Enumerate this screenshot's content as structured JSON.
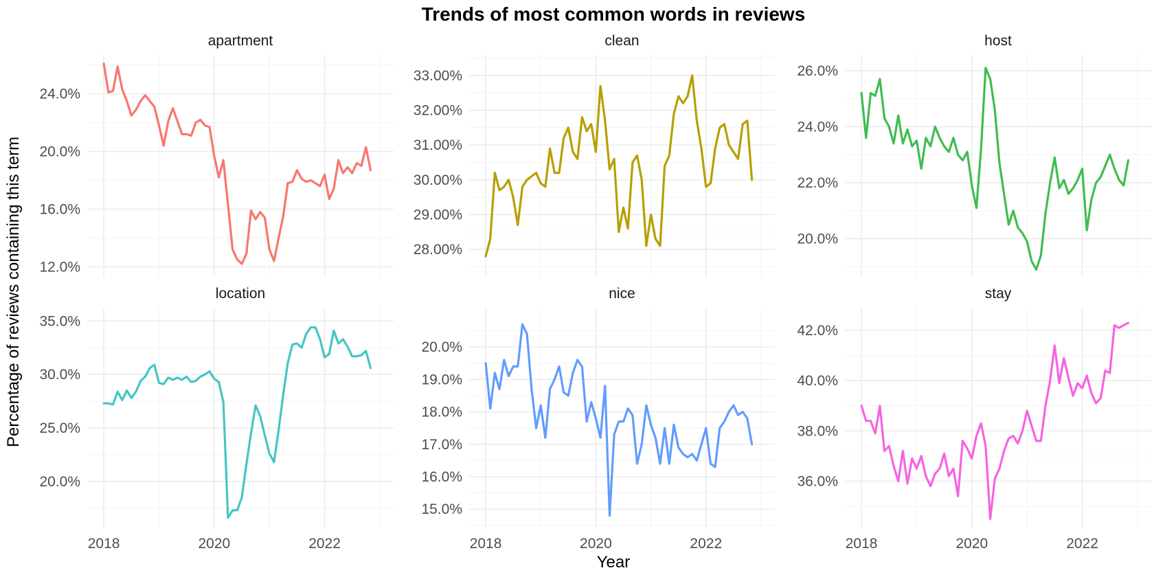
{
  "chart_data": {
    "type": "line",
    "title": "Trends of most common words in reviews",
    "xlabel": "Year",
    "ylabel": "Percentage of reviews containing this term",
    "x_ticks": [
      "2018",
      "2020",
      "2022"
    ],
    "x_range": [
      2018.0,
      2022.917
    ],
    "x_step_months": 1,
    "x_start": "2018-01",
    "grid": true,
    "panels": [
      {
        "name": "apartment",
        "color": "#F8766D",
        "ylim": [
          12.0,
          26.0
        ],
        "y_ticks": [
          "12.0%",
          "16.0%",
          "20.0%",
          "24.0%"
        ],
        "y_tick_values": [
          12,
          16,
          20,
          24
        ],
        "values": [
          26.1,
          24.1,
          24.2,
          25.9,
          24.3,
          23.5,
          22.5,
          22.9,
          23.5,
          23.9,
          23.5,
          23.1,
          21.8,
          20.4,
          22.1,
          23.0,
          22.1,
          21.2,
          21.2,
          21.1,
          22.0,
          22.2,
          21.8,
          21.7,
          19.7,
          18.2,
          19.4,
          16.3,
          13.2,
          12.5,
          12.2,
          12.9,
          15.9,
          15.3,
          15.8,
          15.4,
          13.2,
          12.4,
          14.0,
          15.5,
          17.8,
          17.9,
          18.7,
          18.1,
          17.9,
          18.0,
          17.8,
          17.6,
          18.4,
          16.7,
          17.4,
          19.4,
          18.5,
          18.9,
          18.5,
          19.2,
          19.0,
          20.3,
          18.7
        ]
      },
      {
        "name": "clean",
        "color": "#B79F00",
        "ylim": [
          27.5,
          33.3
        ],
        "y_ticks": [
          "28.00%",
          "29.00%",
          "30.00%",
          "31.00%",
          "32.00%",
          "33.00%"
        ],
        "y_tick_values": [
          28,
          29,
          30,
          31,
          32,
          33
        ],
        "values": [
          27.8,
          28.3,
          30.2,
          29.7,
          29.8,
          30.0,
          29.5,
          28.7,
          29.8,
          30.0,
          30.1,
          30.2,
          29.9,
          29.8,
          30.9,
          30.2,
          30.2,
          31.2,
          31.5,
          30.8,
          30.6,
          31.8,
          31.4,
          31.6,
          30.8,
          32.7,
          31.7,
          30.3,
          30.6,
          28.5,
          29.2,
          28.6,
          30.5,
          30.7,
          30.0,
          28.1,
          29.0,
          28.3,
          28.1,
          30.4,
          30.7,
          31.9,
          32.4,
          32.2,
          32.4,
          33.0,
          31.7,
          30.9,
          29.8,
          29.9,
          30.9,
          31.5,
          31.6,
          31.0,
          30.8,
          30.6,
          31.6,
          31.7,
          30.0
        ]
      },
      {
        "name": "host",
        "color": "#3FBD4F",
        "ylim": [
          19.0,
          26.2
        ],
        "y_ticks": [
          "20.0%",
          "22.0%",
          "24.0%",
          "26.0%"
        ],
        "y_tick_values": [
          20,
          22,
          24,
          26
        ],
        "values": [
          25.2,
          23.6,
          25.2,
          25.1,
          25.7,
          24.3,
          24.0,
          23.4,
          24.4,
          23.4,
          23.9,
          23.3,
          23.5,
          22.5,
          23.6,
          23.3,
          24.0,
          23.6,
          23.3,
          23.1,
          23.6,
          23.0,
          22.8,
          23.1,
          21.9,
          21.1,
          23.2,
          26.1,
          25.7,
          24.6,
          22.7,
          21.6,
          20.5,
          21.0,
          20.4,
          20.2,
          19.9,
          19.2,
          18.9,
          19.4,
          20.9,
          22.0,
          22.9,
          21.8,
          22.1,
          21.6,
          21.8,
          22.1,
          22.5,
          20.3,
          21.4,
          22.0,
          22.2,
          22.6,
          23.0,
          22.5,
          22.1,
          21.9,
          22.8
        ]
      },
      {
        "name": "location",
        "color": "#45C5C4",
        "ylim": [
          16.5,
          35.3
        ],
        "y_ticks": [
          "20.0%",
          "25.0%",
          "30.0%",
          "35.0%"
        ],
        "y_tick_values": [
          20,
          25,
          30,
          35
        ],
        "values": [
          27.3,
          27.3,
          27.2,
          28.4,
          27.6,
          28.5,
          27.8,
          28.4,
          29.4,
          29.8,
          30.6,
          30.9,
          29.2,
          29.1,
          29.7,
          29.5,
          29.7,
          29.5,
          29.8,
          29.3,
          29.4,
          29.8,
          30.0,
          30.3,
          29.6,
          29.3,
          27.4,
          16.6,
          17.3,
          17.3,
          18.5,
          21.6,
          24.5,
          27.1,
          26.1,
          24.3,
          22.6,
          21.8,
          24.8,
          28.1,
          31.1,
          32.8,
          32.9,
          32.5,
          33.8,
          34.4,
          34.4,
          33.3,
          31.6,
          31.9,
          34.1,
          32.9,
          33.3,
          32.6,
          31.7,
          31.7,
          31.8,
          32.2,
          30.6
        ]
      },
      {
        "name": "nice",
        "color": "#619CFF",
        "ylim": [
          14.7,
          20.9
        ],
        "y_ticks": [
          "15.0%",
          "16.0%",
          "17.0%",
          "18.0%",
          "19.0%",
          "20.0%"
        ],
        "y_tick_values": [
          15,
          16,
          17,
          18,
          19,
          20
        ],
        "values": [
          19.5,
          18.1,
          19.2,
          18.7,
          19.6,
          19.1,
          19.4,
          19.4,
          20.7,
          20.4,
          18.7,
          17.5,
          18.2,
          17.2,
          18.7,
          19.0,
          19.4,
          18.6,
          18.5,
          19.2,
          19.6,
          19.4,
          17.7,
          18.3,
          17.8,
          17.2,
          18.8,
          14.8,
          17.3,
          17.7,
          17.7,
          18.1,
          17.9,
          16.4,
          17.0,
          18.2,
          17.6,
          17.2,
          16.4,
          17.5,
          16.4,
          17.6,
          16.9,
          16.7,
          16.6,
          16.7,
          16.5,
          17.0,
          17.5,
          16.4,
          16.3,
          17.5,
          17.7,
          18.0,
          18.2,
          17.9,
          18.0,
          17.8,
          17.0
        ]
      },
      {
        "name": "stay",
        "color": "#F564E3",
        "ylim": [
          34.5,
          42.5
        ],
        "y_ticks": [
          "36.0%",
          "38.0%",
          "40.0%",
          "42.0%"
        ],
        "y_tick_values": [
          36,
          38,
          40,
          42
        ],
        "values": [
          39.0,
          38.4,
          38.4,
          37.9,
          39.0,
          37.2,
          37.4,
          36.6,
          36.0,
          37.2,
          35.9,
          36.9,
          36.5,
          37.0,
          36.2,
          35.8,
          36.3,
          36.5,
          37.1,
          36.2,
          36.5,
          35.4,
          37.6,
          37.3,
          36.9,
          37.8,
          38.3,
          37.4,
          34.5,
          36.1,
          36.5,
          37.2,
          37.7,
          37.8,
          37.5,
          38.0,
          38.8,
          38.2,
          37.6,
          37.6,
          39.0,
          40.0,
          41.4,
          39.9,
          40.9,
          40.1,
          39.4,
          39.9,
          39.7,
          40.2,
          39.5,
          39.1,
          39.3,
          40.4,
          40.3,
          42.2,
          42.1,
          42.2,
          42.3
        ]
      }
    ]
  }
}
